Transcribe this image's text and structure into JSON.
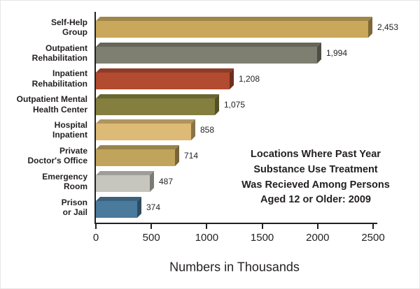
{
  "chart_data": {
    "type": "bar",
    "orientation": "horizontal",
    "title": "Locations Where Past Year Substance Use Treatment Was Recieved Among Persons Aged 12 or Older: 2009",
    "title_lines": [
      "Locations Where Past Year",
      "Substance Use Treatment",
      "Was Recieved Among Persons",
      "Aged 12 or Older: 2009"
    ],
    "categories": [
      "Self-Help Group",
      "Outpatient Rehabilitation",
      "Inpatient Rehabilitation",
      "Outpatient Mental Health Center",
      "Hospital Inpatient",
      "Private Doctor's Office",
      "Emergency Room",
      "Prison or Jail"
    ],
    "category_lines": [
      [
        "Self-Help",
        "Group"
      ],
      [
        "Outpatient",
        "Rehabilitation"
      ],
      [
        "Inpatient",
        "Rehabilitation"
      ],
      [
        "Outpatient Mental",
        "Health Center"
      ],
      [
        "Hospital",
        "Inpatient"
      ],
      [
        "Private",
        "Doctor's Office"
      ],
      [
        "Emergency",
        "Room"
      ],
      [
        "Prison",
        "or Jail"
      ]
    ],
    "values": [
      2453,
      1994,
      1208,
      1075,
      858,
      714,
      487,
      374
    ],
    "value_labels": [
      "2,453",
      "1,994",
      "1,208",
      "1,075",
      "858",
      "714",
      "487",
      "374"
    ],
    "bar_colors": [
      {
        "front": "#C9A75B",
        "top": "#A1864A",
        "side": "#7D6838"
      },
      {
        "front": "#7E7E71",
        "top": "#65655A",
        "side": "#4E4E45"
      },
      {
        "front": "#B24B2F",
        "top": "#8E3C26",
        "side": "#6E2E1D"
      },
      {
        "front": "#847F3E",
        "top": "#6A6632",
        "side": "#525027"
      },
      {
        "front": "#DDBA76",
        "top": "#B1955E",
        "side": "#897347"
      },
      {
        "front": "#C1A45C",
        "top": "#9A8349",
        "side": "#776538"
      },
      {
        "front": "#C6C6BE",
        "top": "#9E9E98",
        "side": "#7B7B76"
      },
      {
        "front": "#4A7A9C",
        "top": "#3B627D",
        "side": "#2E4C61"
      }
    ],
    "xlabel": "Numbers in Thousands",
    "xlim": [
      0,
      2500
    ],
    "x_ticks": [
      0,
      500,
      1000,
      1500,
      2000,
      2500
    ],
    "x_tick_labels": [
      "0",
      "500",
      "1000",
      "1500",
      "2000",
      "2500"
    ],
    "axis_color": "#231f20",
    "background": "#ffffff",
    "grid": false,
    "legend": "none"
  }
}
